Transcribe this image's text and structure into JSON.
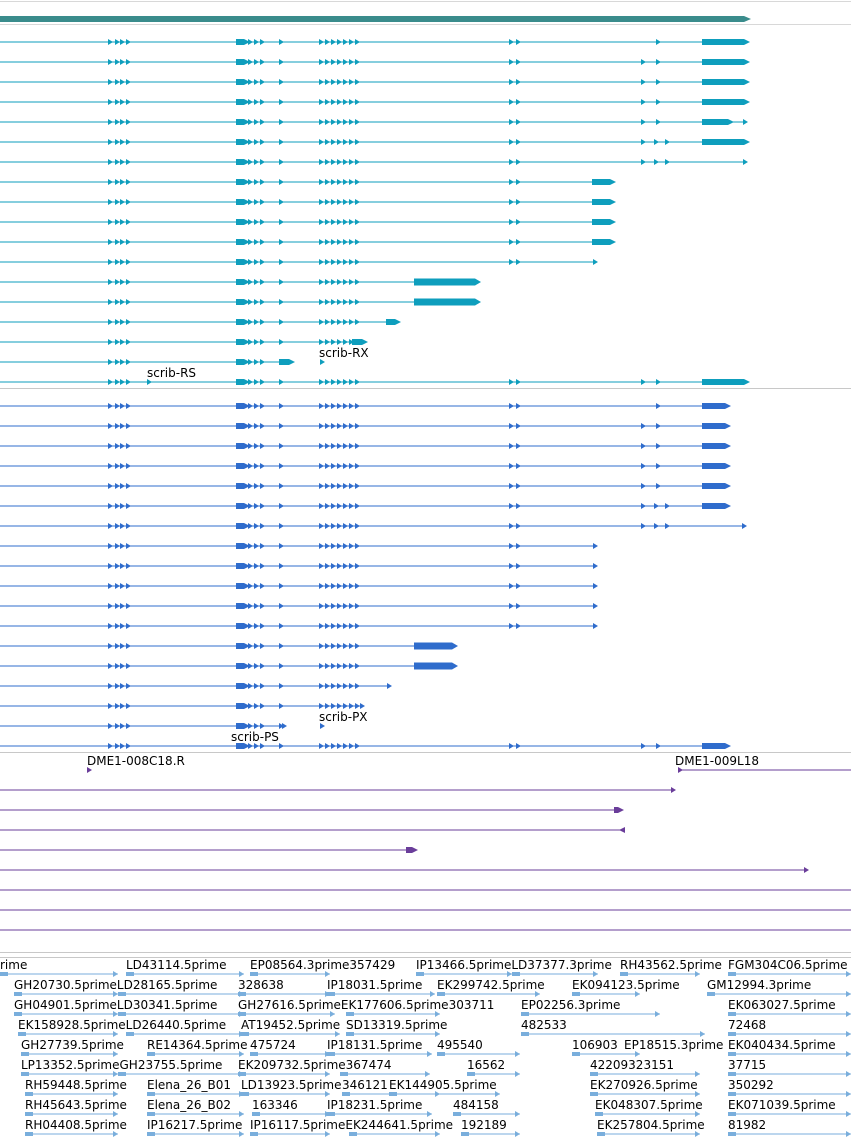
{
  "colors": {
    "summary": "#3a8c8c",
    "track_a": "#0e9ebd",
    "track_b": "#2f6ccc",
    "clones": "#6a3d9a",
    "ests": "#79aedc",
    "separator": "#c8c8c8"
  },
  "gene_labels": [
    "scrib-RS",
    "scrib-RX",
    "scrib-PS",
    "scrib-PX"
  ],
  "clone_labels": [
    "DME1-008C18.R",
    "DME1-009L18"
  ],
  "est_labels": [
    "rime",
    "LD43114.5prime",
    "EP08564.3prime357429",
    "IP13466.5primeLD37377.3prime",
    "RH43562.5prime",
    "FGM304C06.5prime",
    "GH20730.5primeLD28165.5prime",
    "328638",
    "IP18031.5prime",
    "EK299742.5prime",
    "EK094123.5prime",
    "GM12994.3prime",
    "GH04901.5primeLD30341.5prime",
    "GH27616.5primeEK177606.5prime303711",
    "EP02256.3prime",
    "EK063027.5prime",
    "EK158928.5primeLD26440.5prime",
    "AT19452.5prime",
    "SD13319.5prime",
    "482533",
    "72468",
    "GH27739.5prime",
    "RE14364.5prime",
    "475724",
    "IP18131.5prime",
    "495540",
    "106903",
    "EP18515.3prime",
    "EK040434.5prime",
    "LP13352.5primeGH23755.5prime",
    "EK209732.5prime367474",
    "16562",
    "42209323151",
    "37715",
    "RH59448.5prime",
    "Elena_26_B01",
    "LD13923.5prime",
    "346121",
    "EK144905.5prime",
    "EK270926.5prime",
    "350292",
    "RH45643.5prime",
    "Elena_26_B02",
    "163346",
    "IP18231.5prime",
    "484158",
    "EK048307.5prime",
    "EK071039.5prime",
    "RH04408.5prime",
    "IP16217.5prime",
    "IP16117.5primeEK244641.5prime",
    "192189",
    "EK257804.5prime",
    "81982"
  ]
}
